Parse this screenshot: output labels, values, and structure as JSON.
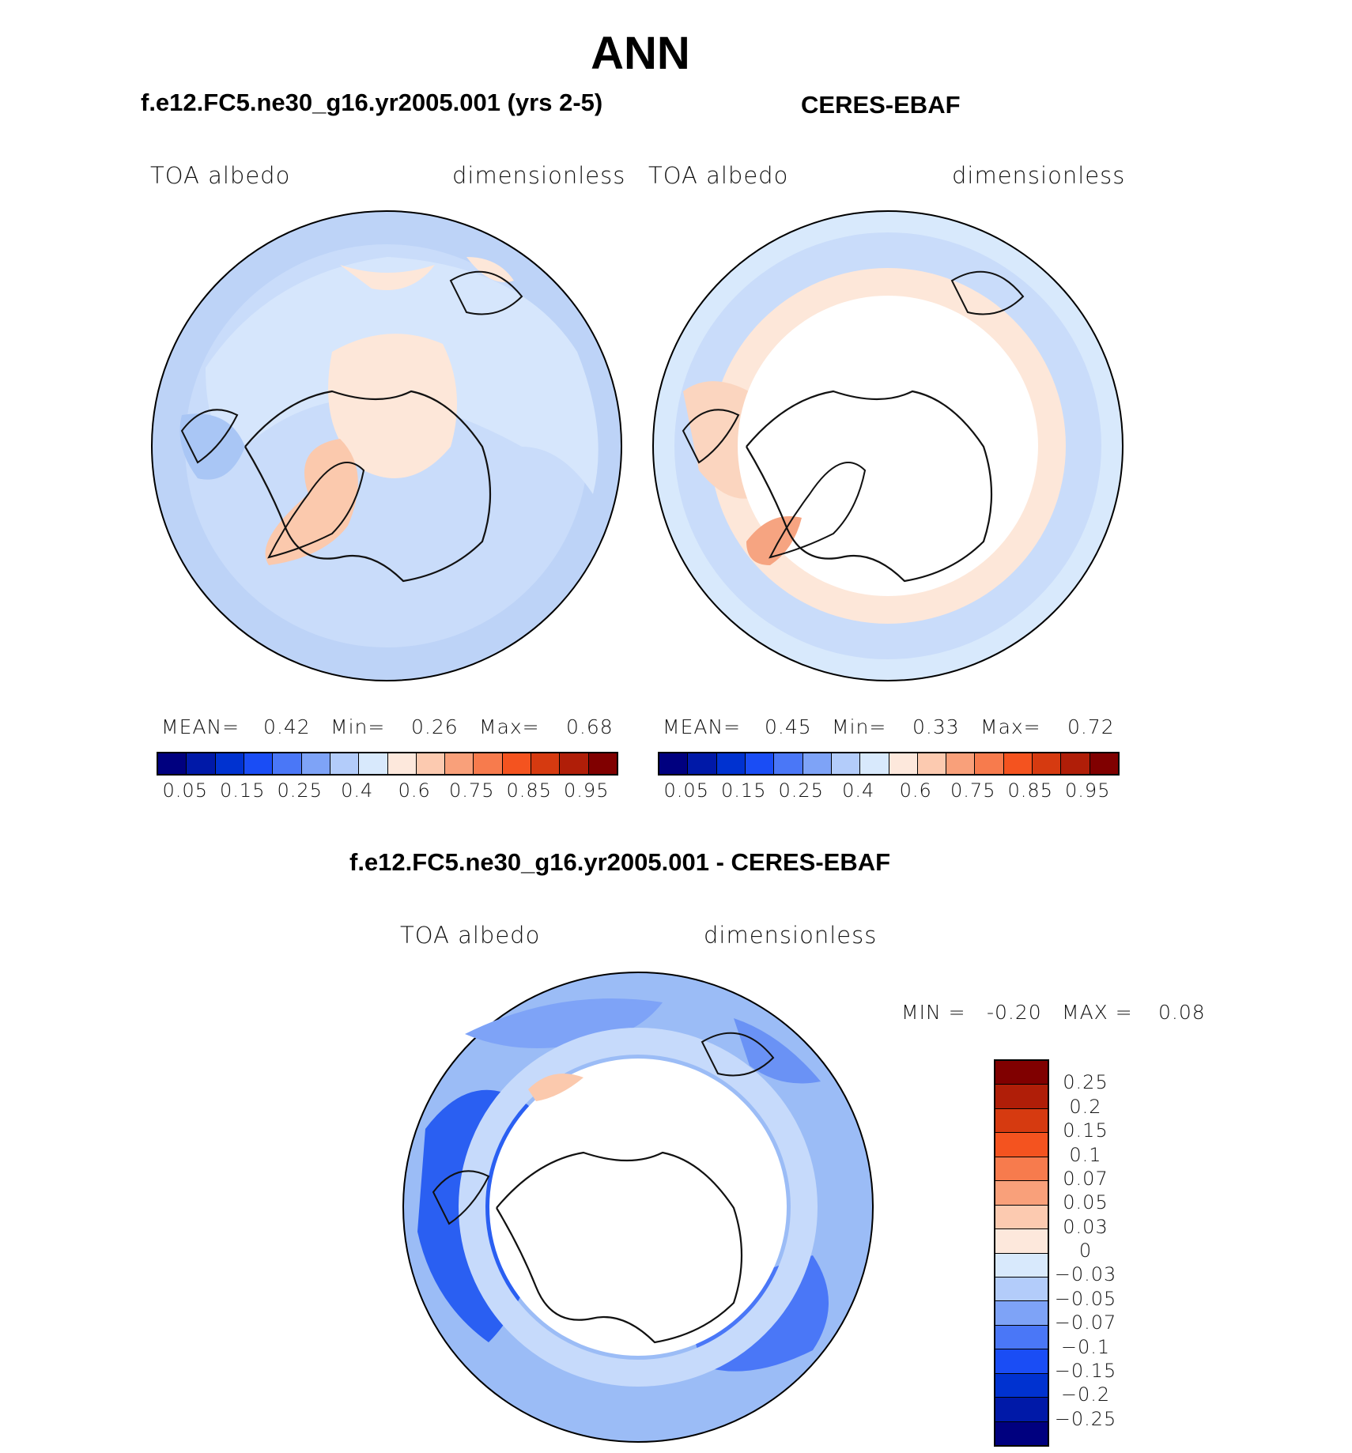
{
  "title": "ANN",
  "panels": [
    {
      "case_title": "f.e12.FC5.ne30_g16.yr2005.001 (yrs 2-5)",
      "left_label": "TOA albedo",
      "right_label": "dimensionless",
      "stats": {
        "mean_label": "MEAN=",
        "mean": "0.42",
        "min_label": "Min=",
        "min": "0.26",
        "max_label": "Max=",
        "max": "0.68"
      }
    },
    {
      "case_title": "CERES-EBAF",
      "left_label": "TOA albedo",
      "right_label": "dimensionless",
      "stats": {
        "mean_label": "MEAN=",
        "mean": "0.45",
        "min_label": "Min=",
        "min": "0.33",
        "max_label": "Max=",
        "max": "0.72"
      }
    }
  ],
  "colorbar": {
    "colors": [
      "#00007f",
      "#0019a8",
      "#0032d0",
      "#1a4df5",
      "#4a77f7",
      "#7ea3f7",
      "#b3ccfa",
      "#d8e9fc",
      "#fde8dc",
      "#fccab0",
      "#f9a07a",
      "#f77b4d",
      "#f4531f",
      "#d63a10",
      "#b01e08",
      "#800000"
    ],
    "ticks": [
      "0.05",
      "0.15",
      "0.25",
      "0.4",
      "0.6",
      "0.75",
      "0.85",
      "0.95"
    ]
  },
  "diff": {
    "title": "f.e12.FC5.ne30_g16.yr2005.001 - CERES-EBAF",
    "left_label": "TOA albedo",
    "right_label": "dimensionless",
    "min_label": "MIN =",
    "min": "-0.20",
    "max_label": "MAX =",
    "max": "0.08",
    "colors": [
      "#800000",
      "#b01e08",
      "#d63a10",
      "#f4531f",
      "#f77b4d",
      "#f9a07a",
      "#fccab0",
      "#fde8dc",
      "#d8e9fc",
      "#b3ccfa",
      "#7ea3f7",
      "#4a77f7",
      "#1a4df5",
      "#0032d0",
      "#0019a8",
      "#00007f"
    ],
    "ticks": [
      "0.25",
      "0.2",
      "0.15",
      "0.1",
      "0.07",
      "0.05",
      "0.03",
      "0",
      "−0.03",
      "−0.05",
      "−0.07",
      "−0.1",
      "−0.15",
      "−0.2",
      "−0.25"
    ]
  }
}
